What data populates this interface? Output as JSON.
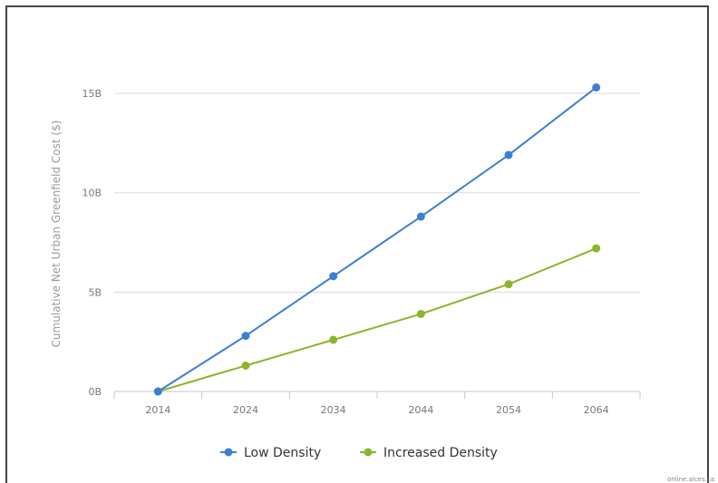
{
  "chart_data": {
    "type": "line",
    "title": "",
    "xlabel": "",
    "ylabel": "Cumulative Net Urban Greenfield Cost ($)",
    "categories": [
      "2014",
      "2024",
      "2034",
      "2044",
      "2054",
      "2064"
    ],
    "yticks": [
      {
        "value": 0,
        "label": "0B"
      },
      {
        "value": 5,
        "label": "5B"
      },
      {
        "value": 10,
        "label": "10B"
      },
      {
        "value": 15,
        "label": "15B"
      }
    ],
    "ylim": [
      0,
      15.5
    ],
    "grid": true,
    "legend_position": "bottom",
    "series": [
      {
        "name": "Low Density",
        "color": "#3d7fd1",
        "values": [
          0,
          2.8,
          5.8,
          8.8,
          11.9,
          15.3
        ]
      },
      {
        "name": "Increased Density",
        "color": "#8ab62a",
        "values": [
          0,
          1.3,
          2.6,
          3.9,
          5.4,
          7.2
        ]
      }
    ]
  },
  "credit": "online.alces.ca"
}
